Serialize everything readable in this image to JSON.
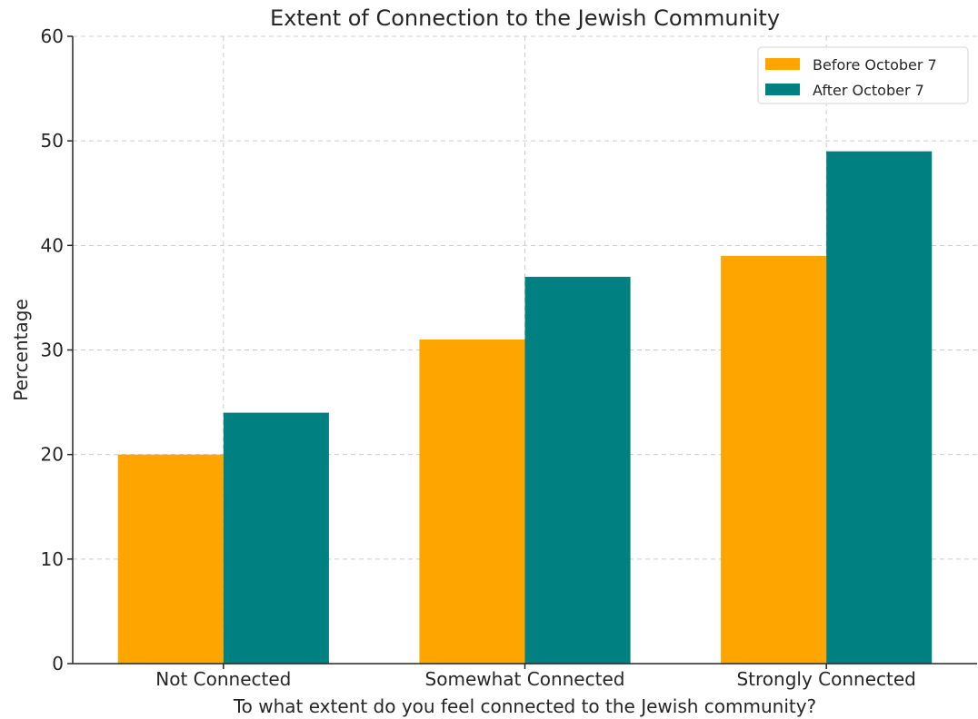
{
  "chart_data": {
    "type": "bar",
    "title": "Extent of Connection to the Jewish Community",
    "xlabel": "To what extent do you feel connected to the Jewish community?",
    "ylabel": "Percentage",
    "categories": [
      "Not Connected",
      "Somewhat Connected",
      "Strongly Connected"
    ],
    "series": [
      {
        "name": "Before October 7",
        "values": [
          20,
          31,
          39
        ],
        "color": "#FFA500"
      },
      {
        "name": "After October 7",
        "values": [
          24,
          37,
          49
        ],
        "color": "#008080"
      }
    ],
    "ylim": [
      0,
      60
    ],
    "yticks": [
      0,
      10,
      20,
      30,
      40,
      50,
      60
    ],
    "grid": true,
    "legend_position": "top-right"
  }
}
